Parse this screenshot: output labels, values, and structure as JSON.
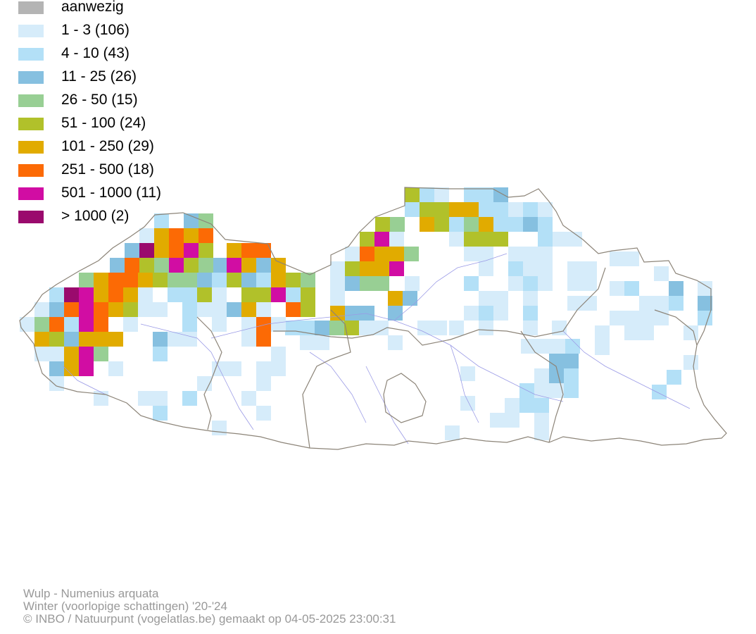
{
  "legend": [
    {
      "label": "aanwezig",
      "color": "#b4b4b4"
    },
    {
      "label": "1 - 3 (106)",
      "color": "#d6ecfa"
    },
    {
      "label": "4 - 10 (43)",
      "color": "#b3e0f7"
    },
    {
      "label": "11 - 25 (26)",
      "color": "#86c0e0"
    },
    {
      "label": "26 - 50 (15)",
      "color": "#98cf94"
    },
    {
      "label": "51 - 100 (24)",
      "color": "#b1c12a"
    },
    {
      "label": "101 - 250 (29)",
      "color": "#e1ab00"
    },
    {
      "label": "251 - 500 (18)",
      "color": "#fc6a05"
    },
    {
      "label": "501 - 1000 (11)",
      "color": "#d10da3"
    },
    {
      "label": "> 1000 (2)",
      "color": "#9a0a6d"
    }
  ],
  "map": {
    "border_color": "#8c8478",
    "river_color": "#9a9ae6"
  },
  "caption": {
    "species": "Wulp - Numenius arquata",
    "season": "Winter (voorlopige schattingen) '20-'24",
    "credit": "© INBO / Natuurpunt (vogelatlas.be) gemaakt op 04-05-2025 23:00:31"
  }
}
